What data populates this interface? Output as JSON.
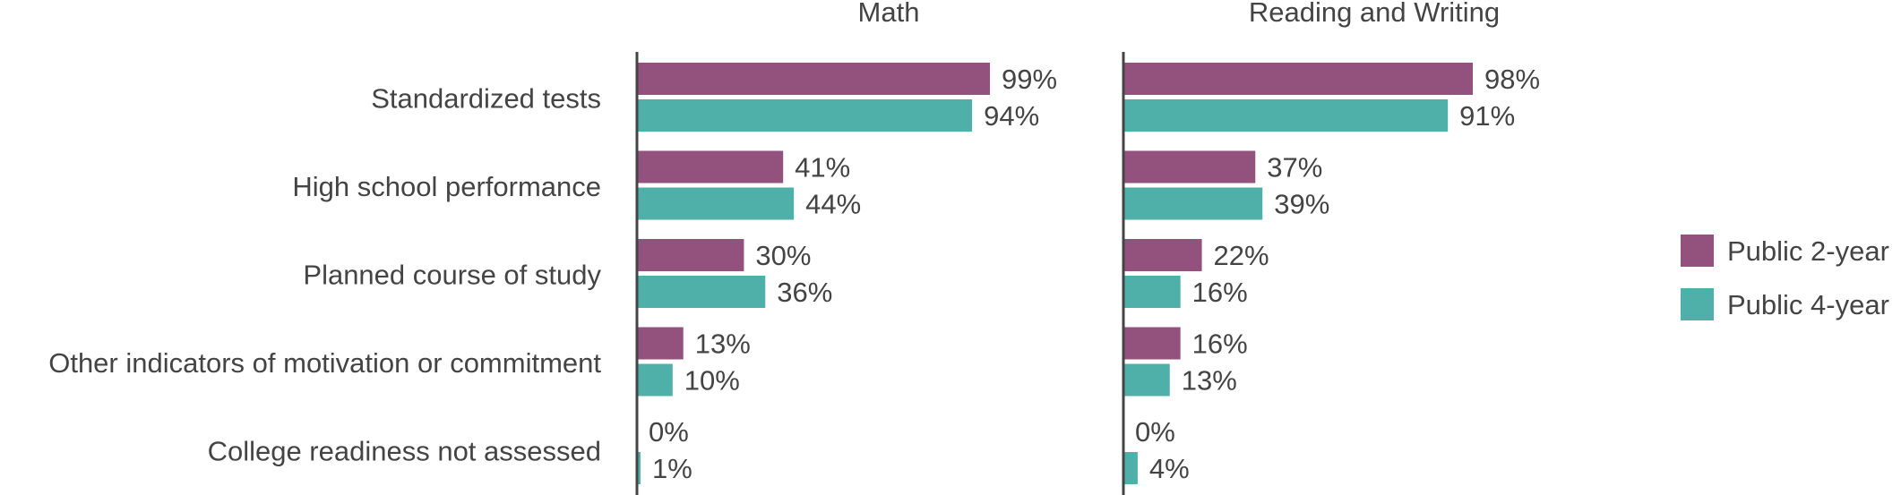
{
  "chart_data": {
    "type": "bar",
    "orientation": "horizontal",
    "categories": [
      "Standardized tests",
      "High school performance",
      "Planned course of study",
      "Other indicators of motivation or commitment",
      "College readiness not assessed"
    ],
    "panels": [
      {
        "title": "Math",
        "series": [
          {
            "name": "Public 2-year",
            "values": [
              99,
              41,
              30,
              13,
              0
            ],
            "labels": [
              "99%",
              "41%",
              "30%",
              "13%",
              "0%"
            ]
          },
          {
            "name": "Public 4-year",
            "values": [
              94,
              44,
              36,
              10,
              1
            ],
            "labels": [
              "94%",
              "44%",
              "36%",
              "10%",
              "1%"
            ]
          }
        ]
      },
      {
        "title": "Reading and Writing",
        "series": [
          {
            "name": "Public 2-year",
            "values": [
              98,
              37,
              22,
              16,
              0
            ],
            "labels": [
              "98%",
              "37%",
              "22%",
              "16%",
              "0%"
            ]
          },
          {
            "name": "Public 4-year",
            "values": [
              91,
              39,
              16,
              13,
              4
            ],
            "labels": [
              "91%",
              "39%",
              "16%",
              "13%",
              "4%"
            ]
          }
        ]
      }
    ],
    "xlim": [
      0,
      100
    ],
    "unit": "%",
    "grid": false,
    "legend": {
      "position": "right",
      "entries": [
        "Public 2-year",
        "Public 4-year"
      ]
    },
    "colors": {
      "Public 2-year": "#93527e",
      "Public 4-year": "#4fb0aa",
      "axis": "#444444",
      "text": "#444444"
    }
  }
}
